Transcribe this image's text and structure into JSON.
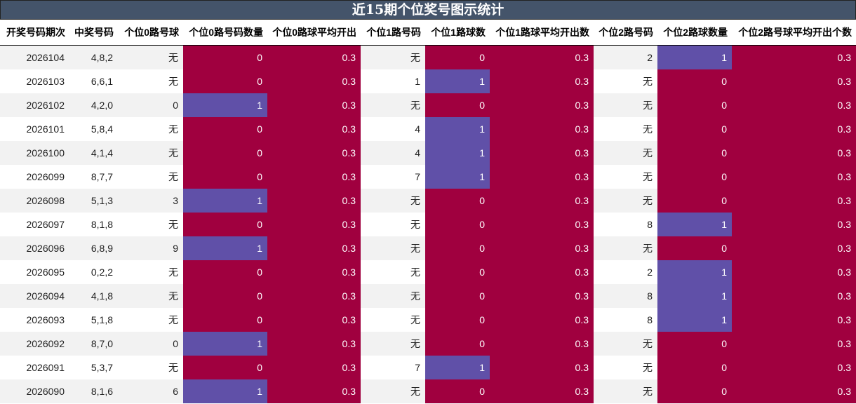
{
  "title": "近15期个位奖号图示统计",
  "colors": {
    "header_bg": "#44546a",
    "zero": "#a0003f",
    "one": "#6050a8"
  },
  "headers": [
    "开奖号码期次",
    "中奖号码",
    "个位0路号球",
    "个位0路号码数量",
    "个位0路球平均开出",
    "个位1路号码",
    "个位1路球数",
    "个位1路球平均开出数",
    "个位2路号码",
    "个位2路球数量",
    "个位2路号球平均开出个数"
  ],
  "rows": [
    [
      "2026104",
      "4,8,2",
      "无",
      "0",
      "0.3",
      "无",
      "0",
      "0.3",
      "2",
      "1",
      "0.3"
    ],
    [
      "2026103",
      "6,6,1",
      "无",
      "0",
      "0.3",
      "1",
      "1",
      "0.3",
      "无",
      "0",
      "0.3"
    ],
    [
      "2026102",
      "4,2,0",
      "0",
      "1",
      "0.3",
      "无",
      "0",
      "0.3",
      "无",
      "0",
      "0.3"
    ],
    [
      "2026101",
      "5,8,4",
      "无",
      "0",
      "0.3",
      "4",
      "1",
      "0.3",
      "无",
      "0",
      "0.3"
    ],
    [
      "2026100",
      "4,1,4",
      "无",
      "0",
      "0.3",
      "4",
      "1",
      "0.3",
      "无",
      "0",
      "0.3"
    ],
    [
      "2026099",
      "8,7,7",
      "无",
      "0",
      "0.3",
      "7",
      "1",
      "0.3",
      "无",
      "0",
      "0.3"
    ],
    [
      "2026098",
      "5,1,3",
      "3",
      "1",
      "0.3",
      "无",
      "0",
      "0.3",
      "无",
      "0",
      "0.3"
    ],
    [
      "2026097",
      "8,1,8",
      "无",
      "0",
      "0.3",
      "无",
      "0",
      "0.3",
      "8",
      "1",
      "0.3"
    ],
    [
      "2026096",
      "6,8,9",
      "9",
      "1",
      "0.3",
      "无",
      "0",
      "0.3",
      "无",
      "0",
      "0.3"
    ],
    [
      "2026095",
      "0,2,2",
      "无",
      "0",
      "0.3",
      "无",
      "0",
      "0.3",
      "2",
      "1",
      "0.3"
    ],
    [
      "2026094",
      "4,1,8",
      "无",
      "0",
      "0.3",
      "无",
      "0",
      "0.3",
      "8",
      "1",
      "0.3"
    ],
    [
      "2026093",
      "5,1,8",
      "无",
      "0",
      "0.3",
      "无",
      "0",
      "0.3",
      "8",
      "1",
      "0.3"
    ],
    [
      "2026092",
      "8,7,0",
      "0",
      "1",
      "0.3",
      "无",
      "0",
      "0.3",
      "无",
      "0",
      "0.3"
    ],
    [
      "2026091",
      "5,3,7",
      "无",
      "0",
      "0.3",
      "7",
      "1",
      "0.3",
      "无",
      "0",
      "0.3"
    ],
    [
      "2026090",
      "8,1,6",
      "6",
      "1",
      "0.3",
      "无",
      "0",
      "0.3",
      "无",
      "0",
      "0.3"
    ]
  ]
}
